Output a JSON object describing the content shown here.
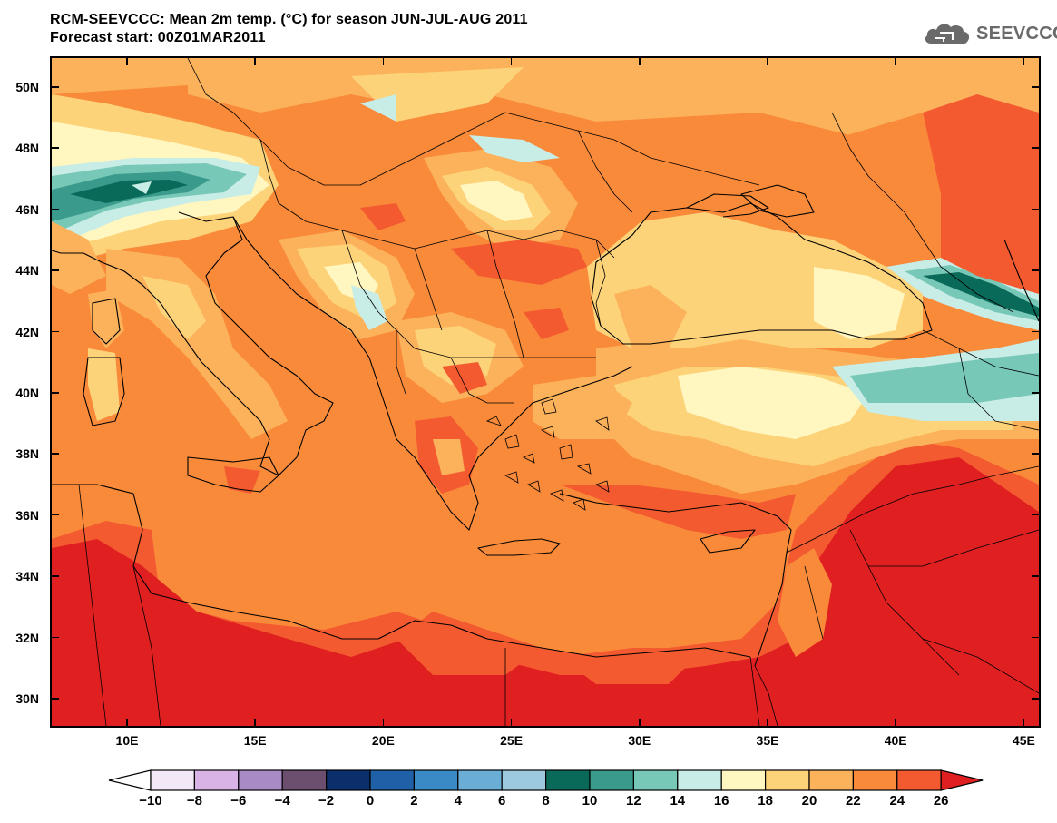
{
  "header": {
    "title": "RCM-SEEVCCC: Mean 2m temp. (°C) for season JUN-JUL-AUG 2011",
    "subtitle": "Forecast start: 00Z01MAR2011"
  },
  "logo": {
    "text": "SEEVCCC",
    "icon": "cloud-icon"
  },
  "map": {
    "lat_labels": [
      "50N",
      "48N",
      "46N",
      "44N",
      "42N",
      "40N",
      "38N",
      "36N",
      "34N",
      "32N",
      "30N"
    ],
    "lon_labels": [
      "10E",
      "15E",
      "20E",
      "25E",
      "30E",
      "35E",
      "40E",
      "45E"
    ],
    "palette": {
      "hot_red": "#e02020",
      "red_orange": "#f45a30",
      "orange": "#f88a3a",
      "light_orange": "#fbb25a",
      "pale_yellow": "#fdd37a",
      "cream": "#fff6c0",
      "pale_teal": "#c8ece6",
      "teal": "#78c8b8",
      "mid_teal": "#3a9a8c",
      "dark_teal": "#0a6a5a"
    }
  },
  "colorbar": {
    "labels": [
      "−10",
      "−8",
      "−6",
      "−4",
      "−2",
      "0",
      "2",
      "4",
      "6",
      "8",
      "10",
      "12",
      "14",
      "16",
      "18",
      "20",
      "22",
      "24",
      "26"
    ],
    "colors": [
      "#f3e8f6",
      "#dab3e6",
      "#a88bc6",
      "#6c4f6f",
      "#0a2f6a",
      "#2060a6",
      "#3a8ac6",
      "#6aaed6",
      "#9cc9e0",
      "#0a6a5a",
      "#3a9a8c",
      "#78c8b8",
      "#c8ece6",
      "#fff6c0",
      "#fdd37a",
      "#fbb25a",
      "#f88a3a",
      "#f45a30"
    ],
    "under_color": "#ffffff",
    "over_color": "#e02020"
  }
}
